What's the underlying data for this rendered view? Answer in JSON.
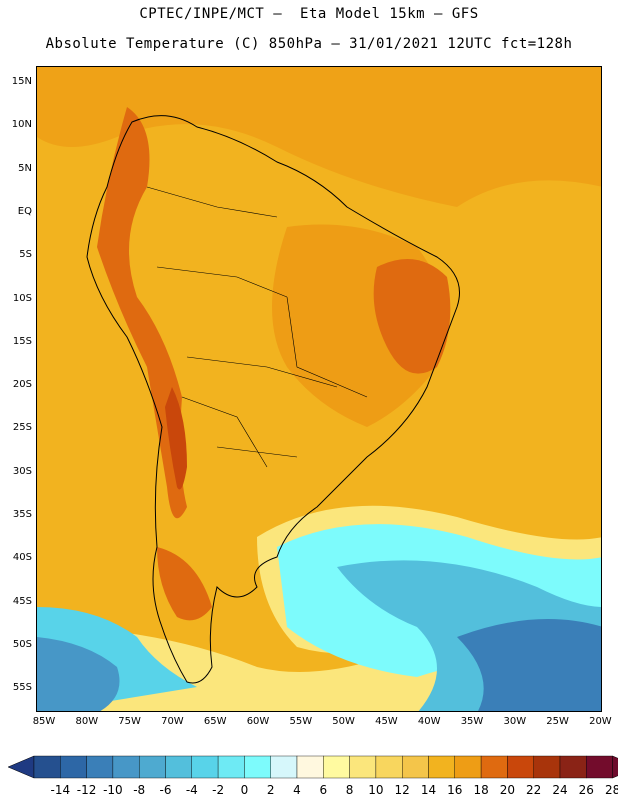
{
  "header": {
    "line1": "CPTEC/INPE/MCT –  Eta Model 15km – GFS",
    "line2": "Absolute Temperature (C) 850hPa – 31/01/2021 12UTC fct=128h"
  },
  "map": {
    "lat_labels": [
      "15N",
      "10N",
      "5N",
      "EQ",
      "5S",
      "10S",
      "15S",
      "20S",
      "25S",
      "30S",
      "35S",
      "40S",
      "45S",
      "50S",
      "55S"
    ],
    "lon_labels": [
      "85W",
      "80W",
      "75W",
      "70W",
      "65W",
      "60W",
      "55W",
      "50W",
      "45W",
      "40W",
      "35W",
      "30W",
      "25W",
      "20W"
    ],
    "base_color": "#f2b31f"
  },
  "colorbar": {
    "labels": [
      "-14",
      "-12",
      "-10",
      "-8",
      "-6",
      "-4",
      "-2",
      "0",
      "2",
      "4",
      "6",
      "8",
      "10",
      "12",
      "14",
      "16",
      "18",
      "20",
      "22",
      "24",
      "26",
      "28"
    ],
    "colors": [
      "#25508f",
      "#2d67a6",
      "#3a7fb8",
      "#4797c7",
      "#4eaad0",
      "#53bfdc",
      "#58d3e9",
      "#6eeaf4",
      "#7dfbfc",
      "#d6f7fb",
      "#fff8df",
      "#fffaa0",
      "#fbe67c",
      "#f8d65e",
      "#f4c54a",
      "#f2b31f",
      "#ee9d15",
      "#df6a10",
      "#c9470b",
      "#a8340b",
      "#8a2316",
      "#730c2c"
    ],
    "min_arrow_color": "#1f3a82",
    "max_arrow_color": "#6d0a2b"
  }
}
